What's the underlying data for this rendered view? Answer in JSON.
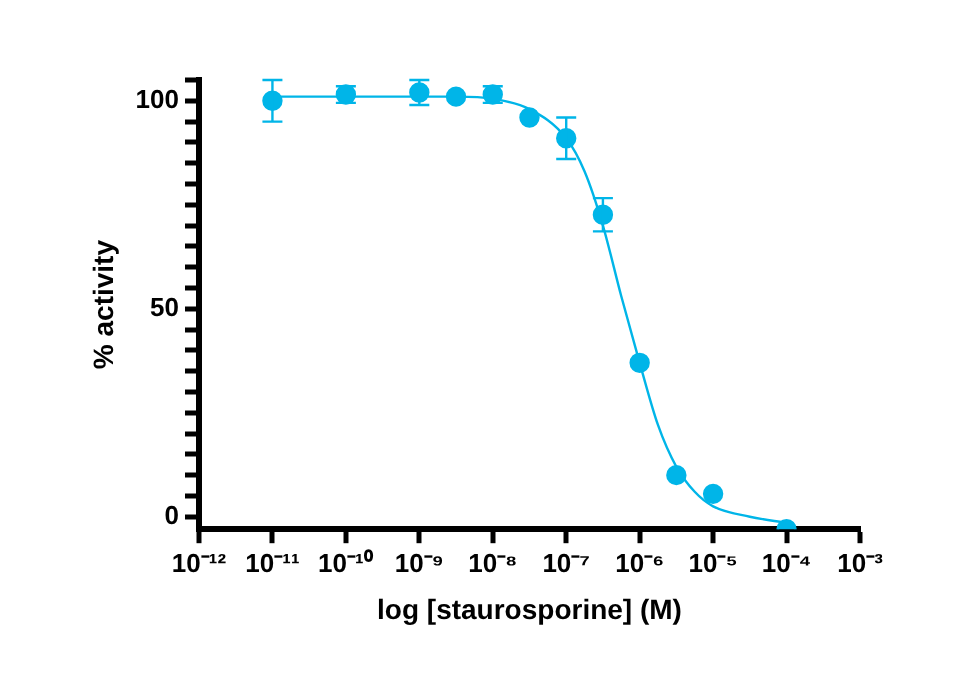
{
  "chart_data": {
    "type": "scatter",
    "xlabel": "log [staurosporine] (M)",
    "ylabel": "% activity",
    "log": "x",
    "grid": false,
    "legend": false,
    "xlim": [
      1e-12,
      0.001
    ],
    "xticks": [
      {
        "value": 1e-12,
        "label": "10⁻¹²"
      },
      {
        "value": 1e-11,
        "label": "10⁻¹¹"
      },
      {
        "value": 1e-10,
        "label": "10⁻¹⁰"
      },
      {
        "value": 1e-09,
        "label": "10⁻⁹"
      },
      {
        "value": 1e-08,
        "label": "10⁻⁸"
      },
      {
        "value": 1e-07,
        "label": "10⁻⁷"
      },
      {
        "value": 1e-06,
        "label": "10⁻⁶"
      },
      {
        "value": 1e-05,
        "label": "10⁻⁵"
      },
      {
        "value": 0.0001,
        "label": "10⁻⁴"
      },
      {
        "value": 0.001,
        "label": "10⁻³"
      }
    ],
    "ylim": [
      -3,
      105
    ],
    "yticks": [
      0,
      {
        "value": 5,
        "label": null
      },
      {
        "value": 10,
        "label": null
      },
      {
        "value": 15,
        "label": null
      },
      {
        "value": 20,
        "label": null
      },
      {
        "value": 25,
        "label": null
      },
      {
        "value": 30,
        "label": null
      },
      {
        "value": 35,
        "label": null
      },
      {
        "value": 40,
        "label": null
      },
      {
        "value": 45,
        "label": null
      },
      50,
      {
        "value": 55,
        "label": null
      },
      {
        "value": 60,
        "label": null
      },
      {
        "value": 65,
        "label": null
      },
      {
        "value": 70,
        "label": null
      },
      {
        "value": 75,
        "label": null
      },
      {
        "value": 80,
        "label": null
      },
      {
        "value": 85,
        "label": null
      },
      {
        "value": 90,
        "label": null
      },
      {
        "value": 95,
        "label": null
      },
      100,
      {
        "value": 105,
        "label": null
      }
    ],
    "series": [
      {
        "type": "scatter",
        "marker": "circle",
        "color": "#00b5e8",
        "x": [
          1e-11,
          1e-10,
          1e-09,
          3.16e-09,
          1e-08,
          3.16e-08,
          1e-07,
          3.16e-07,
          1e-06,
          3.16e-06,
          1e-05,
          0.0001
        ],
        "values": [
          100,
          101.5,
          102,
          101,
          101.5,
          96,
          91,
          72.6,
          37,
          10,
          5.5,
          -3
        ],
        "errors": [
          5,
          2,
          3,
          null,
          2,
          null,
          5,
          4,
          null,
          null,
          null,
          null
        ]
      },
      {
        "type": "line",
        "marker": "none",
        "color": "#00b5e8",
        "x": [
          1e-11,
          1e-10,
          1e-09,
          3.16e-09,
          1e-08,
          3.16e-08,
          1e-07,
          1.78e-07,
          3.16e-07,
          5.62e-07,
          1e-06,
          1.78e-06,
          3.16e-06,
          5.62e-06,
          1e-05,
          3.16e-05,
          0.0001
        ],
        "values": [
          101,
          101,
          101,
          101,
          100.5,
          98,
          91,
          83,
          70,
          53,
          37,
          22,
          12,
          6,
          2.5,
          0,
          -1.5
        ]
      }
    ]
  }
}
